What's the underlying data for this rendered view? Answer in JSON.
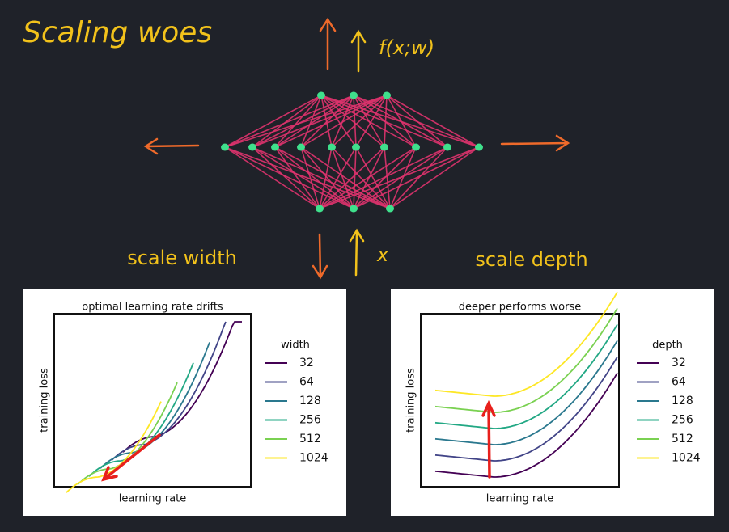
{
  "title": "Scaling woes",
  "network": {
    "output_label": "f(x;w)",
    "input_label": "x",
    "left_label": "scale width",
    "right_label": "scale depth"
  },
  "panels": [
    {
      "title": "optimal learning rate drifts",
      "x_label": "learning rate",
      "y_label": "training loss",
      "legend_title": "width",
      "legend": [
        {
          "label": "32",
          "color": "#440154"
        },
        {
          "label": "64",
          "color": "#414487"
        },
        {
          "label": "128",
          "color": "#2a788e"
        },
        {
          "label": "256",
          "color": "#22a884"
        },
        {
          "label": "512",
          "color": "#7ad151"
        },
        {
          "label": "1024",
          "color": "#fde725"
        }
      ]
    },
    {
      "title": "deeper performs worse",
      "x_label": "learning rate",
      "y_label": "training loss",
      "legend_title": "depth",
      "legend": [
        {
          "label": "32",
          "color": "#440154"
        },
        {
          "label": "64",
          "color": "#414487"
        },
        {
          "label": "128",
          "color": "#2a788e"
        },
        {
          "label": "256",
          "color": "#22a884"
        },
        {
          "label": "512",
          "color": "#7ad151"
        },
        {
          "label": "1024",
          "color": "#fde725"
        }
      ]
    }
  ]
}
